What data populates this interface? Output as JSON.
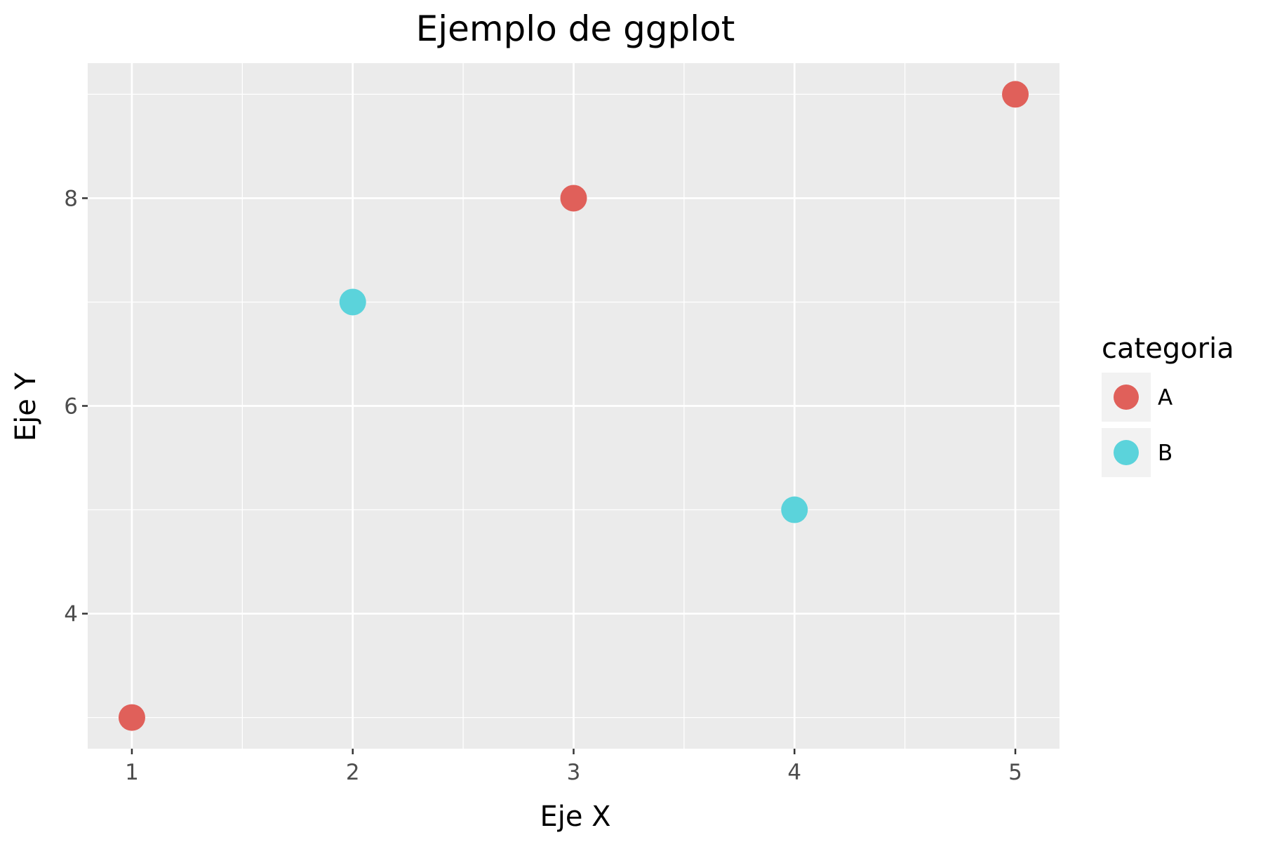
{
  "chart_data": {
    "type": "scatter",
    "title": "Ejemplo de ggplot",
    "xlabel": "Eje X",
    "ylabel": "Eje Y",
    "xlim": [
      0.8,
      5.2
    ],
    "ylim": [
      2.7,
      9.3
    ],
    "x_ticks": [
      1,
      2,
      3,
      4,
      5
    ],
    "x_tick_labels": [
      "1",
      "2",
      "3",
      "4",
      "5"
    ],
    "y_ticks": [
      4,
      6,
      8
    ],
    "y_tick_labels": [
      "4",
      "6",
      "8"
    ],
    "x_minor": [
      1.5,
      2.5,
      3.5,
      4.5
    ],
    "y_minor": [
      3,
      5,
      7,
      9
    ],
    "grid": true,
    "legend": {
      "title": "categoria",
      "placement": "right",
      "entries": [
        {
          "label": "A",
          "color": "#E0605A"
        },
        {
          "label": "B",
          "color": "#5BD3DB"
        }
      ]
    },
    "series": [
      {
        "name": "A",
        "color": "#E0605A",
        "points": [
          {
            "x": 1,
            "y": 3
          },
          {
            "x": 3,
            "y": 8
          },
          {
            "x": 5,
            "y": 9
          }
        ]
      },
      {
        "name": "B",
        "color": "#5BD3DB",
        "points": [
          {
            "x": 2,
            "y": 7
          },
          {
            "x": 4,
            "y": 5
          }
        ]
      }
    ],
    "colors": {
      "panel": "#EBEBEB",
      "grid": "#FFFFFF",
      "legend_key": "#F2F2F2"
    }
  }
}
